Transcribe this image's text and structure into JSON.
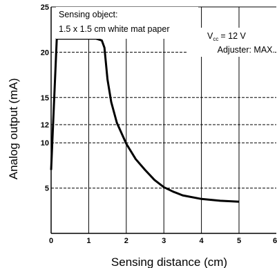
{
  "chart_data": {
    "type": "line",
    "xlabel": "Sensing distance (cm)",
    "ylabel": "Analog output (mA)",
    "xlim": [
      0,
      6
    ],
    "ylim": [
      0,
      25
    ],
    "x_ticks": [
      "0",
      "1",
      "2",
      "3",
      "4",
      "5",
      "6"
    ],
    "y_ticks": [
      {
        "value": 5,
        "label": "5"
      },
      {
        "value": 10,
        "label": "10"
      },
      {
        "value": 12,
        "label": "12"
      },
      {
        "value": 15,
        "label": "15"
      },
      {
        "value": 20,
        "label": "20"
      },
      {
        "value": 25,
        "label": "25"
      }
    ],
    "grid": true,
    "annotations": {
      "object_line1": "Sensing object:",
      "object_line2": "1.5 x 1.5 cm white mat paper",
      "vcc_prefix": "V",
      "vcc_subscript": "cc",
      "vcc_value": "= 12 V",
      "adjuster": "Adjuster: MAX."
    },
    "series": [
      {
        "x": [
          0.0,
          0.15,
          1.2,
          1.35,
          1.42,
          1.5,
          1.6,
          1.75,
          2.0,
          2.25,
          2.5,
          2.75,
          3.0,
          3.25,
          3.5,
          4.0,
          4.5,
          5.0
        ],
        "y": [
          7.0,
          21.5,
          21.5,
          21.3,
          20.5,
          17.0,
          14.5,
          12.2,
          9.9,
          8.2,
          7.0,
          5.9,
          5.1,
          4.6,
          4.2,
          3.8,
          3.6,
          3.5
        ]
      }
    ]
  }
}
